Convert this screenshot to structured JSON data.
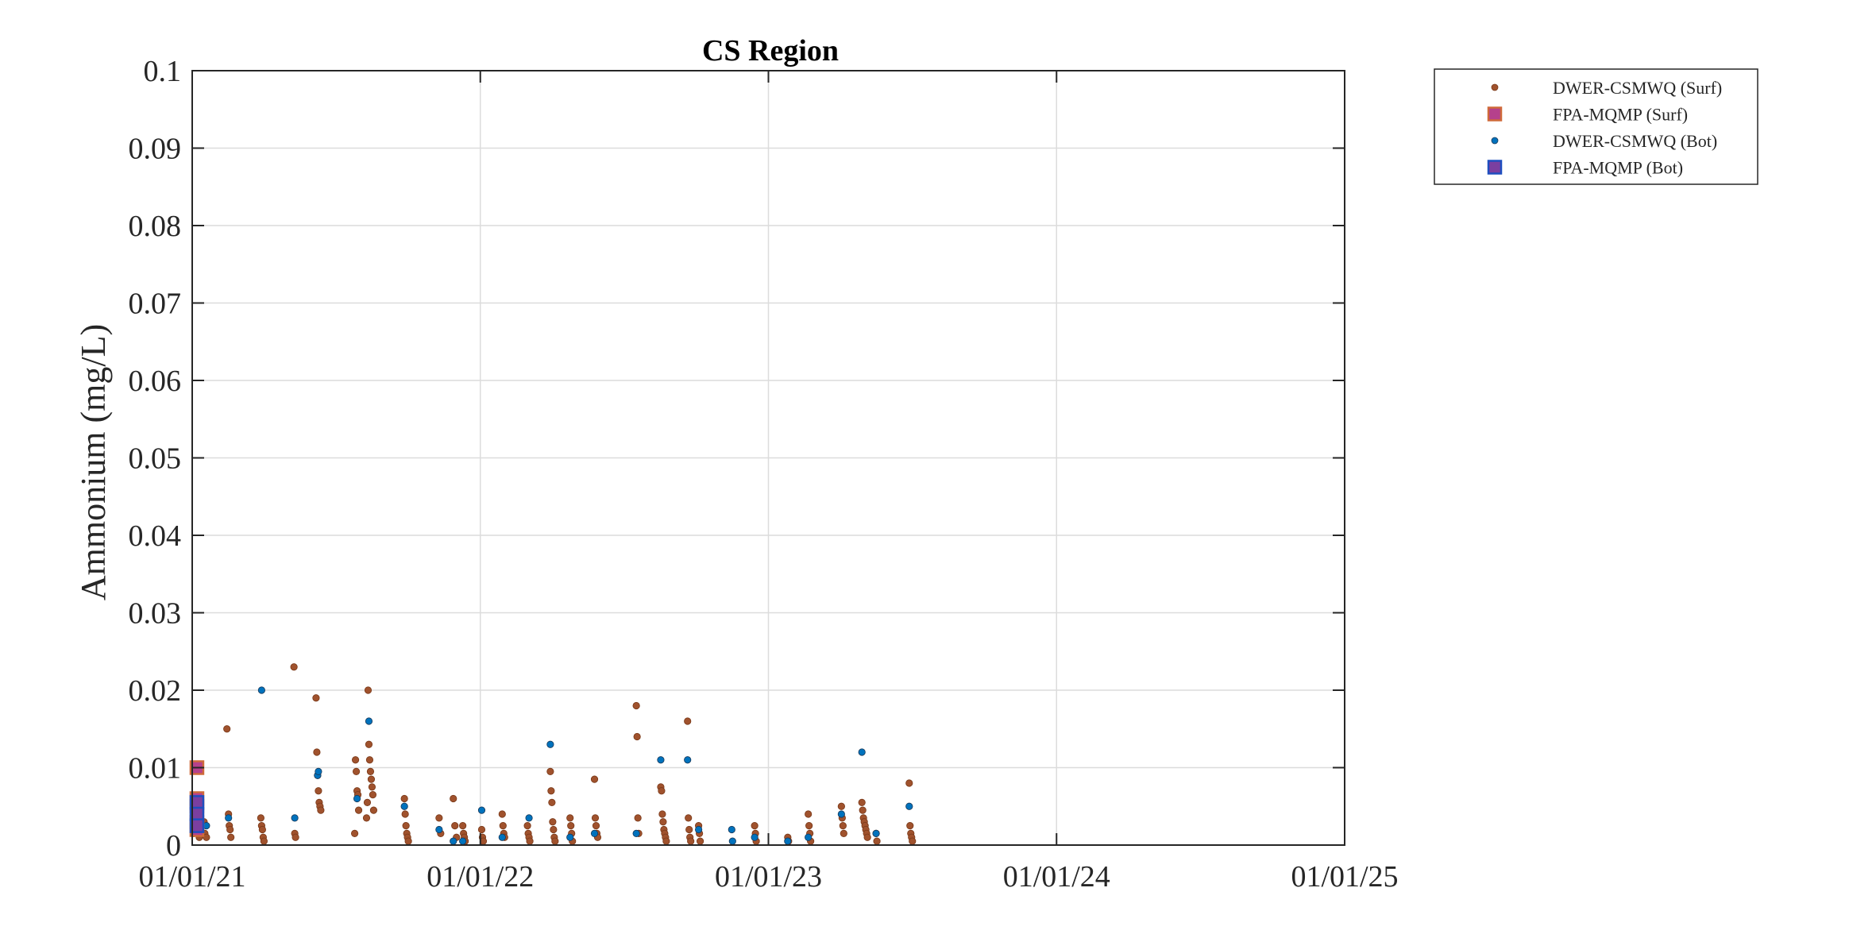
{
  "chart_data": {
    "type": "scatter",
    "title": "CS Region",
    "xlabel": "",
    "ylabel": "Ammonium (mg/L)",
    "x_tick_labels": [
      "01/01/21",
      "01/01/22",
      "01/01/23",
      "01/01/24",
      "01/01/25"
    ],
    "y_tick_labels": [
      "0",
      "0.01",
      "0.02",
      "0.03",
      "0.04",
      "0.05",
      "0.06",
      "0.07",
      "0.08",
      "0.09",
      "0.1"
    ],
    "xlim": [
      "2021-01-01",
      "2025-01-01"
    ],
    "ylim": [
      0,
      0.1
    ],
    "grid": true,
    "legend_position": "outside-top-right",
    "series": [
      {
        "name": "DWER-CSMWQ (Surf)",
        "marker": "dot",
        "color": "#a0522d",
        "points": [
          [
            "2021-01-03",
            0.0015
          ],
          [
            "2021-01-08",
            0.002
          ],
          [
            "2021-01-10",
            0.001
          ],
          [
            "2021-01-16",
            0.003
          ],
          [
            "2021-01-17",
            0.0015
          ],
          [
            "2021-01-19",
            0.001
          ],
          [
            "2021-02-14",
            0.015
          ],
          [
            "2021-02-16",
            0.004
          ],
          [
            "2021-02-17",
            0.0025
          ],
          [
            "2021-02-18",
            0.002
          ],
          [
            "2021-02-19",
            0.001
          ],
          [
            "2021-03-29",
            0.0035
          ],
          [
            "2021-03-30",
            0.0025
          ],
          [
            "2021-03-31",
            0.002
          ],
          [
            "2021-04-01",
            0.001
          ],
          [
            "2021-04-02",
            0.0005
          ],
          [
            "2021-05-10",
            0.023
          ],
          [
            "2021-05-11",
            0.0015
          ],
          [
            "2021-05-12",
            0.001
          ],
          [
            "2021-06-07",
            0.019
          ],
          [
            "2021-06-08",
            0.012
          ],
          [
            "2021-06-09",
            0.009
          ],
          [
            "2021-06-10",
            0.007
          ],
          [
            "2021-06-11",
            0.0055
          ],
          [
            "2021-06-12",
            0.005
          ],
          [
            "2021-06-13",
            0.0045
          ],
          [
            "2021-07-27",
            0.011
          ],
          [
            "2021-07-28",
            0.0095
          ],
          [
            "2021-07-29",
            0.007
          ],
          [
            "2021-07-30",
            0.0065
          ],
          [
            "2021-07-31",
            0.0045
          ],
          [
            "2021-07-26",
            0.0015
          ],
          [
            "2021-08-12",
            0.02
          ],
          [
            "2021-08-13",
            0.013
          ],
          [
            "2021-08-14",
            0.011
          ],
          [
            "2021-08-15",
            0.0095
          ],
          [
            "2021-08-16",
            0.0085
          ],
          [
            "2021-08-17",
            0.0075
          ],
          [
            "2021-08-18",
            0.0065
          ],
          [
            "2021-08-11",
            0.0055
          ],
          [
            "2021-08-19",
            0.0045
          ],
          [
            "2021-08-10",
            0.0035
          ],
          [
            "2021-09-27",
            0.006
          ],
          [
            "2021-09-28",
            0.004
          ],
          [
            "2021-09-29",
            0.0025
          ],
          [
            "2021-09-30",
            0.0015
          ],
          [
            "2021-10-01",
            0.001
          ],
          [
            "2021-10-02",
            0.0005
          ],
          [
            "2021-11-10",
            0.0035
          ],
          [
            "2021-11-12",
            0.0015
          ],
          [
            "2021-11-28",
            0.006
          ],
          [
            "2021-11-30",
            0.0025
          ],
          [
            "2021-12-02",
            0.001
          ],
          [
            "2021-12-10",
            0.0025
          ],
          [
            "2021-12-11",
            0.0015
          ],
          [
            "2021-12-12",
            0.001
          ],
          [
            "2021-12-13",
            0.0005
          ],
          [
            "2022-01-03",
            0.002
          ],
          [
            "2022-01-04",
            0.001
          ],
          [
            "2022-01-05",
            0.0005
          ],
          [
            "2022-01-29",
            0.004
          ],
          [
            "2022-01-30",
            0.0025
          ],
          [
            "2022-01-31",
            0.0015
          ],
          [
            "2022-02-01",
            0.001
          ],
          [
            "2022-03-02",
            0.0025
          ],
          [
            "2022-03-03",
            0.0015
          ],
          [
            "2022-03-04",
            0.001
          ],
          [
            "2022-03-05",
            0.0005
          ],
          [
            "2022-03-31",
            0.0095
          ],
          [
            "2022-04-01",
            0.007
          ],
          [
            "2022-04-02",
            0.0055
          ],
          [
            "2022-04-03",
            0.003
          ],
          [
            "2022-04-04",
            0.002
          ],
          [
            "2022-04-05",
            0.001
          ],
          [
            "2022-04-06",
            0.0005
          ],
          [
            "2022-04-25",
            0.0035
          ],
          [
            "2022-04-26",
            0.0025
          ],
          [
            "2022-04-27",
            0.0015
          ],
          [
            "2022-04-28",
            0.0005
          ],
          [
            "2022-05-26",
            0.0085
          ],
          [
            "2022-05-27",
            0.0035
          ],
          [
            "2022-05-28",
            0.0025
          ],
          [
            "2022-05-29",
            0.0015
          ],
          [
            "2022-05-30",
            0.001
          ],
          [
            "2022-07-18",
            0.018
          ],
          [
            "2022-07-19",
            0.014
          ],
          [
            "2022-07-20",
            0.0035
          ],
          [
            "2022-07-21",
            0.0015
          ],
          [
            "2022-08-18",
            0.0075
          ],
          [
            "2022-08-19",
            0.007
          ],
          [
            "2022-08-20",
            0.004
          ],
          [
            "2022-08-21",
            0.003
          ],
          [
            "2022-08-22",
            0.002
          ],
          [
            "2022-08-23",
            0.0015
          ],
          [
            "2022-08-24",
            0.001
          ],
          [
            "2022-08-25",
            0.0005
          ],
          [
            "2022-09-21",
            0.016
          ],
          [
            "2022-09-22",
            0.0035
          ],
          [
            "2022-09-23",
            0.002
          ],
          [
            "2022-09-24",
            0.001
          ],
          [
            "2022-09-25",
            0.0005
          ],
          [
            "2022-10-05",
            0.0025
          ],
          [
            "2022-10-06",
            0.0015
          ],
          [
            "2022-10-07",
            0.0005
          ],
          [
            "2022-12-15",
            0.0025
          ],
          [
            "2022-12-16",
            0.0015
          ],
          [
            "2022-12-17",
            0.0005
          ],
          [
            "2023-01-26",
            0.001
          ],
          [
            "2023-01-27",
            0.0005
          ],
          [
            "2023-02-21",
            0.004
          ],
          [
            "2023-02-22",
            0.0025
          ],
          [
            "2023-02-23",
            0.0015
          ],
          [
            "2023-02-24",
            0.0005
          ],
          [
            "2023-04-04",
            0.005
          ],
          [
            "2023-04-05",
            0.0035
          ],
          [
            "2023-04-06",
            0.0025
          ],
          [
            "2023-04-07",
            0.0015
          ],
          [
            "2023-04-30",
            0.0055
          ],
          [
            "2023-05-01",
            0.0045
          ],
          [
            "2023-05-02",
            0.0035
          ],
          [
            "2023-05-03",
            0.003
          ],
          [
            "2023-05-04",
            0.0025
          ],
          [
            "2023-05-05",
            0.002
          ],
          [
            "2023-05-06",
            0.0015
          ],
          [
            "2023-05-07",
            0.001
          ],
          [
            "2023-05-18",
            0.0015
          ],
          [
            "2023-05-19",
            0.0005
          ],
          [
            "2023-06-29",
            0.008
          ],
          [
            "2023-06-30",
            0.0025
          ],
          [
            "2023-07-01",
            0.0015
          ],
          [
            "2023-07-02",
            0.001
          ],
          [
            "2023-07-03",
            0.0005
          ]
        ]
      },
      {
        "name": "FPA-MQMP (Surf)",
        "marker": "square",
        "color": "#b5418c",
        "points": [
          [
            "2021-01-07",
            0.01
          ],
          [
            "2021-01-07",
            0.006
          ],
          [
            "2021-01-07",
            0.005
          ],
          [
            "2021-01-07",
            0.003
          ],
          [
            "2021-01-07",
            0.002
          ]
        ]
      },
      {
        "name": "DWER-CSMWQ (Bot)",
        "marker": "dot",
        "color": "#0072bd",
        "points": [
          [
            "2021-01-19",
            0.0025
          ],
          [
            "2021-02-16",
            0.0035
          ],
          [
            "2021-03-30",
            0.02
          ],
          [
            "2021-05-11",
            0.0035
          ],
          [
            "2021-06-09",
            0.009
          ],
          [
            "2021-06-10",
            0.0095
          ],
          [
            "2021-07-29",
            0.006
          ],
          [
            "2021-08-13",
            0.016
          ],
          [
            "2021-09-27",
            0.005
          ],
          [
            "2021-11-10",
            0.002
          ],
          [
            "2021-11-28",
            0.0005
          ],
          [
            "2021-12-10",
            0.0005
          ],
          [
            "2022-01-03",
            0.0045
          ],
          [
            "2022-01-29",
            0.001
          ],
          [
            "2022-03-04",
            0.0035
          ],
          [
            "2022-03-31",
            0.013
          ],
          [
            "2022-04-25",
            0.001
          ],
          [
            "2022-05-26",
            0.0015
          ],
          [
            "2022-07-18",
            0.0015
          ],
          [
            "2022-08-18",
            0.011
          ],
          [
            "2022-09-21",
            0.011
          ],
          [
            "2022-10-05",
            0.002
          ],
          [
            "2022-11-16",
            0.002
          ],
          [
            "2022-11-17",
            0.0005
          ],
          [
            "2022-12-15",
            0.001
          ],
          [
            "2023-01-26",
            0.0005
          ],
          [
            "2023-02-21",
            0.001
          ],
          [
            "2023-04-04",
            0.004
          ],
          [
            "2023-04-30",
            0.012
          ],
          [
            "2023-05-18",
            0.0015
          ],
          [
            "2023-06-29",
            0.005
          ]
        ]
      },
      {
        "name": "FPA-MQMP (Bot)",
        "marker": "square",
        "color": "#7b3fa0",
        "points": [
          [
            "2021-01-07",
            0.0055
          ],
          [
            "2021-01-07",
            0.004
          ],
          [
            "2021-01-07",
            0.0025
          ]
        ]
      }
    ]
  }
}
